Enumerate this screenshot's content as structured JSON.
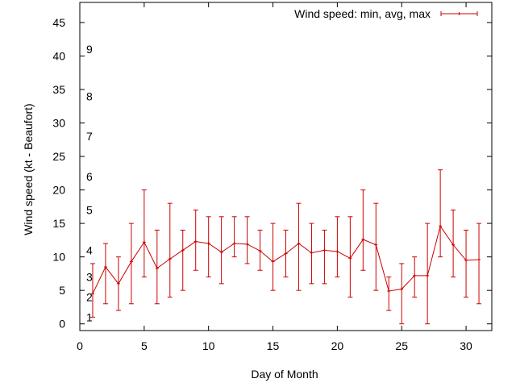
{
  "chart_data": {
    "type": "line",
    "xlabel": "Day of Month",
    "ylabel": "Wind speed (kt - Beaufort)",
    "xlim": [
      0,
      32
    ],
    "ylim": [
      -1,
      48
    ],
    "x_ticks": [
      0,
      5,
      10,
      15,
      20,
      25,
      30
    ],
    "y_ticks": [
      0,
      5,
      10,
      15,
      20,
      25,
      30,
      35,
      40,
      45
    ],
    "grid": false,
    "legend_position": "top-right",
    "series_color": "#cc0000",
    "series": [
      {
        "name": "Wind speed: min, avg, max",
        "points": [
          {
            "x": 1,
            "avg": 4.5,
            "min": 1,
            "max": 9
          },
          {
            "x": 2,
            "avg": 8.5,
            "min": 3,
            "max": 12
          },
          {
            "x": 3,
            "avg": 6,
            "min": 2,
            "max": 10
          },
          {
            "x": 4,
            "avg": 9.3,
            "min": 3,
            "max": 15
          },
          {
            "x": 5,
            "avg": 12.2,
            "min": 7,
            "max": 20
          },
          {
            "x": 6,
            "avg": 8.3,
            "min": 3,
            "max": 14
          },
          {
            "x": 7,
            "avg": 9.7,
            "min": 4,
            "max": 18
          },
          {
            "x": 8,
            "avg": 11,
            "min": 5,
            "max": 14
          },
          {
            "x": 9,
            "avg": 12.3,
            "min": 8,
            "max": 17
          },
          {
            "x": 10,
            "avg": 12,
            "min": 7,
            "max": 16
          },
          {
            "x": 11,
            "avg": 10.7,
            "min": 6,
            "max": 16
          },
          {
            "x": 12,
            "avg": 12,
            "min": 10,
            "max": 16
          },
          {
            "x": 13,
            "avg": 11.9,
            "min": 9,
            "max": 16
          },
          {
            "x": 14,
            "avg": 10.9,
            "min": 8,
            "max": 14
          },
          {
            "x": 15,
            "avg": 9.3,
            "min": 5,
            "max": 15
          },
          {
            "x": 16,
            "avg": 10.5,
            "min": 7,
            "max": 14
          },
          {
            "x": 17,
            "avg": 12,
            "min": 5,
            "max": 18
          },
          {
            "x": 18,
            "avg": 10.6,
            "min": 6,
            "max": 15
          },
          {
            "x": 19,
            "avg": 11,
            "min": 6,
            "max": 14
          },
          {
            "x": 20,
            "avg": 10.8,
            "min": 7,
            "max": 16
          },
          {
            "x": 21,
            "avg": 9.8,
            "min": 4,
            "max": 16
          },
          {
            "x": 22,
            "avg": 12.6,
            "min": 8,
            "max": 20
          },
          {
            "x": 23,
            "avg": 11.8,
            "min": 5,
            "max": 18
          },
          {
            "x": 24,
            "avg": 4.9,
            "min": 2,
            "max": 7
          },
          {
            "x": 25,
            "avg": 5.2,
            "min": 0,
            "max": 9
          },
          {
            "x": 26,
            "avg": 7.2,
            "min": 4,
            "max": 10
          },
          {
            "x": 27,
            "avg": 7.2,
            "min": 0,
            "max": 15
          },
          {
            "x": 28,
            "avg": 14.6,
            "min": 10,
            "max": 23
          },
          {
            "x": 29,
            "avg": 11.8,
            "min": 7,
            "max": 17
          },
          {
            "x": 30,
            "avg": 9.5,
            "min": 4,
            "max": 14
          },
          {
            "x": 31,
            "avg": 9.6,
            "min": 3,
            "max": 15
          }
        ]
      }
    ],
    "beaufort_labels": [
      {
        "label": "1",
        "y": 1
      },
      {
        "label": "2",
        "y": 4
      },
      {
        "label": "3",
        "y": 7
      },
      {
        "label": "4",
        "y": 11
      },
      {
        "label": "5",
        "y": 17
      },
      {
        "label": "6",
        "y": 22
      },
      {
        "label": "7",
        "y": 28
      },
      {
        "label": "8",
        "y": 34
      },
      {
        "label": "9",
        "y": 41
      }
    ]
  }
}
